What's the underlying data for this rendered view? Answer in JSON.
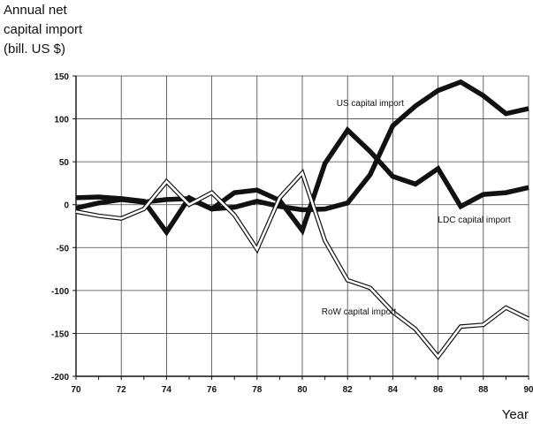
{
  "chart_data": {
    "type": "line",
    "title": "",
    "ylabel_lines": [
      "Annual net",
      "capital import",
      "(bill. US $)"
    ],
    "xlabel": "Year",
    "xlim": [
      70,
      90
    ],
    "ylim": [
      -200,
      150
    ],
    "x_ticks": [
      70,
      72,
      74,
      76,
      78,
      80,
      82,
      84,
      86,
      88,
      90
    ],
    "y_ticks": [
      150,
      100,
      50,
      0,
      -50,
      -100,
      -150,
      -200
    ],
    "y_tick_labels": [
      "150",
      "100",
      "50",
      "0",
      "-50",
      "-100",
      "-150",
      "-200"
    ],
    "grid": true,
    "x": [
      70,
      71,
      72,
      73,
      74,
      75,
      76,
      77,
      78,
      79,
      80,
      81,
      82,
      83,
      84,
      85,
      86,
      87,
      88,
      89,
      90
    ],
    "series": [
      {
        "name": "US capital import",
        "style": "thick-black",
        "values": [
          -4,
          2,
          6,
          3,
          6,
          7,
          -5,
          -3,
          4,
          -2,
          -6,
          -5,
          2,
          35,
          92,
          115,
          133,
          143,
          127,
          106,
          112
        ]
      },
      {
        "name": "LDC capital import",
        "style": "thick-black",
        "values": [
          8,
          9,
          7,
          4,
          -32,
          8,
          -5,
          14,
          17,
          5,
          -30,
          48,
          87,
          62,
          33,
          24,
          42,
          -2,
          12,
          14,
          20
        ]
      },
      {
        "name": "RoW capital import",
        "style": "hollow",
        "values": [
          -8,
          -13,
          -16,
          -5,
          27,
          0,
          14,
          -12,
          -52,
          8,
          37,
          -42,
          -88,
          -97,
          -125,
          -145,
          -177,
          -142,
          -140,
          -120,
          -133
        ]
      }
    ],
    "annotations": [
      {
        "text": "US capital import",
        "x": 83,
        "y": 115
      },
      {
        "text": "LDC capital import",
        "x": 87.6,
        "y": -21
      },
      {
        "text": "RoW capital import",
        "x": 82.5,
        "y": -128
      }
    ]
  }
}
